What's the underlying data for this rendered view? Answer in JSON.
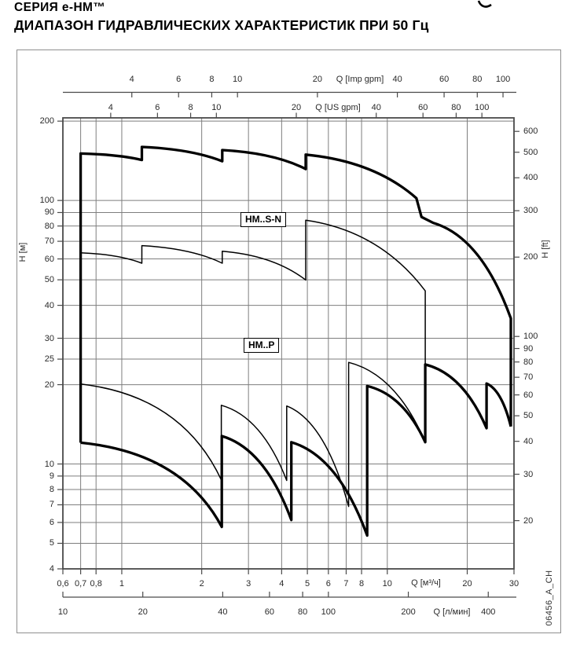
{
  "page": {
    "title_line1": "СЕРИЯ  e-HM™",
    "title_line2": "ДИАПАЗОН ГИДРАВЛИЧЕСКИХ ХАРАКТЕРИСТИК ПРИ 50 Гц",
    "doc_code": "06456_A_CH"
  },
  "colors": {
    "curve": "#000000",
    "grid": "#7e7e7e",
    "plot_border": "#4a4a4a",
    "axis_line": "#4a4a4a",
    "text": "#2a2a2a"
  },
  "chart_data": {
    "type": "line",
    "title": "ДИАПАЗОН ГИДРАВЛИЧЕСКИХ ХАРАКТЕРИСТИК ПРИ 50 Гц",
    "grid": "on",
    "x_axis_bottom_primary": {
      "label": "Q [м³/ч]",
      "scale": "log",
      "range": [
        0.6,
        30
      ],
      "ticks": [
        {
          "v": 0.6,
          "l": "0,6"
        },
        {
          "v": 0.7,
          "l": "0,7"
        },
        {
          "v": 0.8,
          "l": "0,8"
        },
        {
          "v": 1,
          "l": "1"
        },
        {
          "v": 2,
          "l": "2"
        },
        {
          "v": 3,
          "l": "3"
        },
        {
          "v": 4,
          "l": "4"
        },
        {
          "v": 5,
          "l": "5"
        },
        {
          "v": 6,
          "l": "6"
        },
        {
          "v": 7,
          "l": "7"
        },
        {
          "v": 8,
          "l": "8"
        },
        {
          "v": 10,
          "l": "10"
        },
        {
          "v": 20,
          "l": "20"
        },
        {
          "v": 30,
          "l": "30"
        }
      ]
    },
    "x_axis_bottom_secondary": {
      "label": "Q [л/мин]",
      "factor_to_m3h": 0.06,
      "ticks": [
        10,
        20,
        40,
        60,
        80,
        100,
        200,
        400
      ]
    },
    "x_axis_top_imp": {
      "label": "Q [Imp gpm]",
      "factor_to_m3h": 0.27276,
      "ticks": [
        4,
        6,
        8,
        10,
        20,
        40,
        60,
        80,
        100
      ]
    },
    "x_axis_top_us": {
      "label": "Q [US gpm]",
      "factor_to_m3h": 0.22712,
      "ticks": [
        4,
        6,
        8,
        10,
        20,
        40,
        60,
        80,
        100
      ]
    },
    "y_axis_left": {
      "label": "H [м]",
      "scale": "log",
      "range": [
        4,
        205.8
      ],
      "ticks": [
        200,
        100,
        90,
        80,
        70,
        60,
        50,
        40,
        30,
        25,
        20,
        10,
        9,
        8,
        7,
        6,
        5,
        4
      ]
    },
    "y_axis_right": {
      "label": "H [ft]",
      "factor_to_m": 0.3048,
      "ticks": [
        600,
        500,
        400,
        300,
        200,
        100,
        90,
        80,
        70,
        60,
        50,
        40,
        30,
        20
      ]
    },
    "gridlines": {
      "x_values_m3h": [
        0.7,
        0.8,
        1,
        2,
        3,
        4,
        5,
        6,
        7,
        8,
        10,
        20
      ],
      "y_values_m": [
        5,
        6,
        7,
        8,
        9,
        10,
        20,
        25,
        30,
        40,
        50,
        60,
        70,
        80,
        90,
        100,
        200
      ]
    },
    "series_labels": [
      {
        "text": "HM..S-N"
      },
      {
        "text": "HM..P"
      }
    ],
    "series": [
      {
        "name": "HM..S-N upper envelope (max)",
        "style": "bold",
        "segments": [
          [
            "M",
            0.7,
            12.05
          ],
          [
            "V",
            150.7
          ],
          [
            "D",
            1.19,
            142.4
          ],
          [
            "V",
            159.6
          ],
          [
            "D",
            2.39,
            140.9
          ],
          [
            "V",
            155.3
          ],
          [
            "D",
            4.93,
            131.6
          ],
          [
            "V",
            149.2
          ],
          [
            "D",
            12.87,
            102.0
          ],
          [
            "L",
            13.45,
            86.6
          ],
          [
            "D",
            14.9,
            82.2,
            0.5,
            0.5
          ],
          [
            "D",
            29.2,
            35.7
          ],
          [
            "V",
            13.88
          ]
        ]
      },
      {
        "name": "HM..P lower envelope (min)",
        "style": "bold",
        "segments": [
          [
            "M",
            0.7,
            12.05
          ],
          [
            "D",
            2.38,
            5.77,
            0.72,
            0.12
          ],
          [
            "V",
            12.76
          ],
          [
            "D",
            4.35,
            6.13
          ],
          [
            "V",
            12.1
          ],
          [
            "D",
            8.4,
            5.35
          ],
          [
            "V",
            19.76
          ],
          [
            "D",
            13.9,
            12.1
          ],
          [
            "V",
            23.85
          ],
          [
            "D",
            23.65,
            13.67
          ],
          [
            "V",
            20.2
          ],
          [
            "D",
            29.2,
            13.88
          ]
        ]
      },
      {
        "name": "HM..S-N lower boundary",
        "style": "thin",
        "segments": [
          [
            "M",
            0.7,
            63.3
          ],
          [
            "D",
            1.19,
            57.8
          ],
          [
            "V",
            67.4
          ],
          [
            "D",
            2.39,
            57.8
          ],
          [
            "V",
            64.2
          ],
          [
            "D",
            4.93,
            49.9
          ],
          [
            "V",
            84.2
          ],
          [
            "D",
            13.9,
            45.4
          ],
          [
            "V",
            12.1
          ]
        ]
      },
      {
        "name": "HM..P upper boundary",
        "style": "thin",
        "segments": [
          [
            "M",
            0.7,
            20.1
          ],
          [
            "D",
            2.37,
            8.7,
            0.72,
            0.12
          ],
          [
            "V",
            16.7
          ],
          [
            "D",
            4.18,
            8.66
          ],
          [
            "V",
            16.6
          ],
          [
            "D",
            7.15,
            6.9
          ],
          [
            "V",
            24.3
          ],
          [
            "D",
            13.9,
            12.1
          ]
        ]
      }
    ]
  }
}
